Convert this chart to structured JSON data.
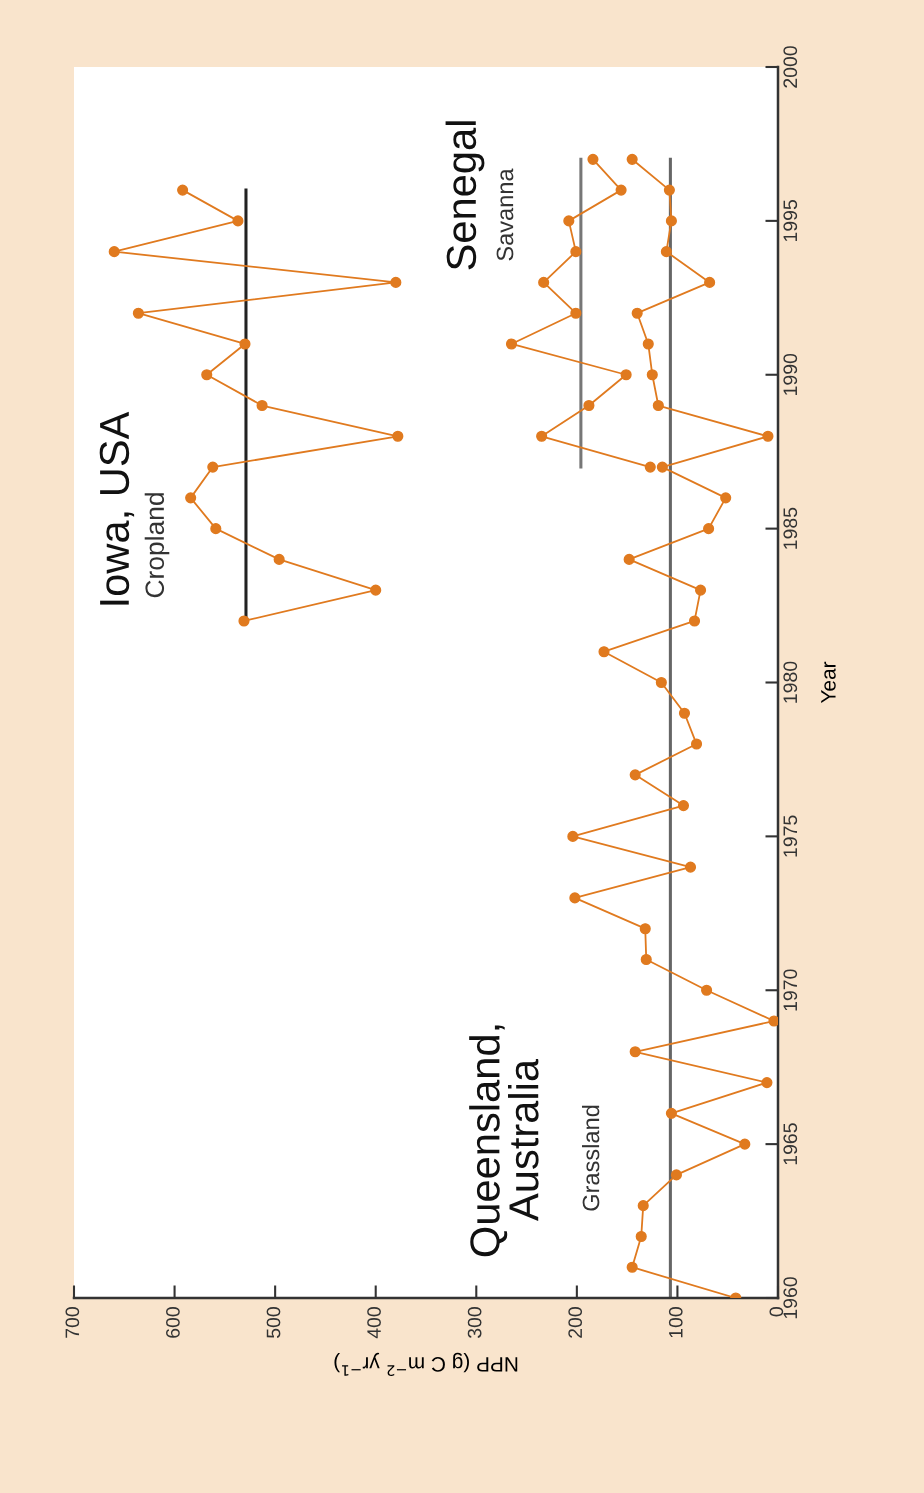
{
  "chart_data": {
    "type": "line",
    "xlabel": "NPP (g C m$^{−2}$ yr$^{−1}$)",
    "ylabel": "Year",
    "xlim": [
      700,
      0
    ],
    "xticks": [
      700,
      600,
      500,
      400,
      300,
      200,
      100,
      0
    ],
    "ylim": [
      1960,
      2000
    ],
    "yticks": [
      1960,
      1965,
      1970,
      1975,
      1980,
      1985,
      1990,
      1995,
      2000
    ],
    "grid": false,
    "legend": false,
    "marker": "circle",
    "line_style": "solid",
    "series": [
      {
        "color": "#e07a1f",
        "x": [
          42,
          145,
          136,
          134,
          101,
          33,
          106,
          11,
          142,
          4,
          71,
          131,
          132,
          202,
          87,
          204,
          94,
          142,
          81,
          93,
          116,
          173,
          83,
          77,
          148,
          69,
          52,
          115,
          10,
          119,
          125,
          129,
          140,
          68,
          111,
          106,
          108,
          145
        ],
        "values": [
          1960,
          1961,
          1962,
          1963,
          1964,
          1965,
          1966,
          1967,
          1968,
          1969,
          1970,
          1971,
          1972,
          1973,
          1974,
          1975,
          1976,
          1977,
          1978,
          1979,
          1980,
          1981,
          1982,
          1983,
          1984,
          1985,
          1986,
          1987,
          1988,
          1989,
          1990,
          1991,
          1992,
          1993,
          1994,
          1995,
          1996,
          1997
        ]
      },
      {
        "color": "#e07a1f",
        "x": [
          127,
          235,
          188,
          151,
          265,
          201,
          233,
          201,
          208,
          156,
          184
        ],
        "values": [
          1987,
          1988,
          1989,
          1990,
          1991,
          1992,
          1993,
          1994,
          1995,
          1996,
          1997
        ]
      },
      {
        "color": "#e07a1f",
        "x": [
          531,
          400,
          496,
          559,
          584,
          562,
          378,
          513,
          568,
          530,
          636,
          380,
          660,
          537,
          592
        ],
        "values": [
          1982,
          1983,
          1984,
          1985,
          1986,
          1987,
          1988,
          1989,
          1990,
          1991,
          1992,
          1993,
          1994,
          1995,
          1996
        ]
      },
      {
        "color": "#666666",
        "marker": "none",
        "x": [
          107,
          107
        ],
        "values": [
          1960,
          1997
        ]
      },
      {
        "color": "#777777",
        "marker": "none",
        "x": [
          196,
          196
        ],
        "values": [
          1987,
          1997
        ]
      },
      {
        "color": "#222222",
        "marker": "none",
        "x": [
          529,
          529
        ],
        "values": [
          1982,
          1996
        ]
      }
    ],
    "annotations": [
      "Iowa, USA",
      "Cropland",
      "Senegal",
      "Savanna",
      "Queensland,\nAustralia",
      "Grassland"
    ]
  }
}
